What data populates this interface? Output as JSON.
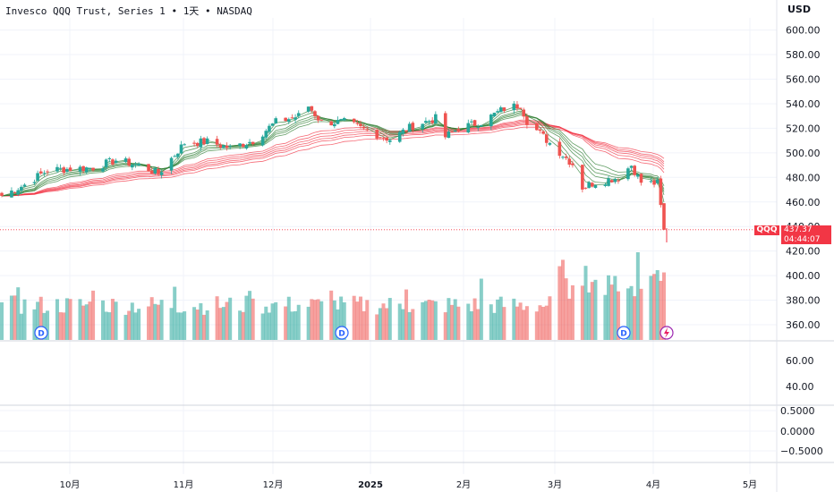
{
  "header": {
    "title": "Invesco QQQ Trust, Series 1",
    "sep": "•",
    "interval": "1天",
    "exchange": "NASDAQ",
    "currency": "USD"
  },
  "price_tag": {
    "symbol": "QQQ",
    "price": "437.37",
    "countdown": "04:44:07"
  },
  "colors": {
    "up": "#26a69a",
    "down": "#ef5350",
    "ribbon_fast": "#2e7d32",
    "ribbon_slow": "#f23645",
    "grid": "#f0f3fa"
  },
  "dividend_markers": [
    "D",
    "D",
    "D"
  ],
  "chart_data": [
    {
      "type": "candlestick",
      "y_unit": "USD",
      "ylim": [
        350,
        610
      ],
      "y_ticks": [
        "600.00",
        "580.00",
        "560.00",
        "540.00",
        "520.00",
        "500.00",
        "480.00",
        "460.00",
        "440.00",
        "420.00",
        "400.00",
        "380.00",
        "360.00"
      ],
      "x_ticks": [
        "10月",
        "11月",
        "12月",
        "2025",
        "2月",
        "3月",
        "4月",
        "5月"
      ],
      "last_price": 437.37,
      "close_path": [
        [
          "2024-09-13",
          465
        ],
        [
          "2024-09-20",
          474
        ],
        [
          "2024-09-27",
          486
        ],
        [
          "2024-10-04",
          487
        ],
        [
          "2024-10-11",
          488
        ],
        [
          "2024-10-18",
          494
        ],
        [
          "2024-10-25",
          490
        ],
        [
          "2024-10-31",
          483
        ],
        [
          "2024-11-08",
          508
        ],
        [
          "2024-11-15",
          509
        ],
        [
          "2024-11-22",
          504
        ],
        [
          "2024-11-29",
          510
        ],
        [
          "2024-12-06",
          525
        ],
        [
          "2024-12-13",
          530
        ],
        [
          "2024-12-16",
          538
        ],
        [
          "2024-12-20",
          525
        ],
        [
          "2024-12-27",
          525
        ],
        [
          "2025-01-03",
          518
        ],
        [
          "2025-01-10",
          511
        ],
        [
          "2025-01-17",
          522
        ],
        [
          "2025-01-24",
          528
        ],
        [
          "2025-01-27",
          513
        ],
        [
          "2025-01-31",
          520
        ],
        [
          "2025-02-07",
          525
        ],
        [
          "2025-02-14",
          536
        ],
        [
          "2025-02-19",
          539
        ],
        [
          "2025-02-21",
          526
        ],
        [
          "2025-02-28",
          508
        ],
        [
          "2025-03-07",
          491
        ],
        [
          "2025-03-10",
          472
        ],
        [
          "2025-03-14",
          476
        ],
        [
          "2025-03-21",
          480
        ],
        [
          "2025-03-25",
          490
        ],
        [
          "2025-03-28",
          476
        ],
        [
          "2025-04-02",
          475
        ],
        [
          "2025-04-03",
          456
        ],
        [
          "2025-04-04",
          436
        ]
      ]
    },
    {
      "type": "bar",
      "name": "volume",
      "values_relative": "shown as colored bars under the price panel"
    },
    {
      "type": "line",
      "name": "oscillator-1",
      "y_ticks": [
        "60.00",
        "40.00"
      ]
    },
    {
      "type": "line",
      "name": "oscillator-2",
      "y_ticks": [
        "0.5000",
        "0.0000",
        "−0.5000"
      ]
    }
  ]
}
